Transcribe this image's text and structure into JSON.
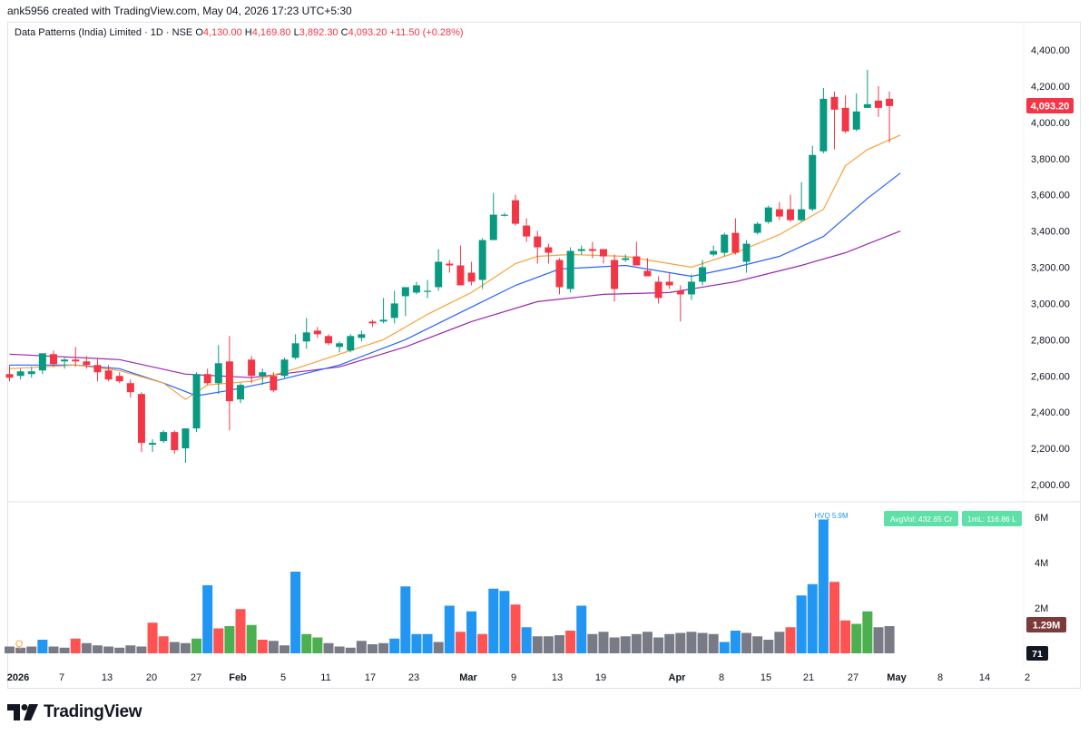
{
  "header": {
    "attribution": "ank5956 created with TradingView.com, May 04, 2026 17:23 UTC+5:30"
  },
  "legend": {
    "symbol": "Data Patterns (India) Limited · 1D · NSE",
    "o_label": "O",
    "o": "4,130.00",
    "h_label": "H",
    "h": "4,169.80",
    "l_label": "L",
    "l": "3,892.30",
    "c_label": "C",
    "c": "4,093.20",
    "change": "+11.50 (+0.28%)"
  },
  "colors": {
    "up": "#089981",
    "down": "#f23645",
    "ema_fast": "#f7a23b",
    "ema_mid": "#2962ff",
    "ema_slow": "#9c27b0",
    "vol_blue": "#2196f3",
    "vol_red": "#ff5252",
    "vol_green": "#4caf50",
    "vol_grey": "#787b86"
  },
  "chart_data": {
    "type": "candlestick",
    "price_axis": {
      "ticks": [
        "2,000.00",
        "2,200.00",
        "2,400.00",
        "2,600.00",
        "2,800.00",
        "3,000.00",
        "3,200.00",
        "3,400.00",
        "3,600.00",
        "3,800.00",
        "4,000.00",
        "4,200.00",
        "4,400.00"
      ],
      "ylim": [
        1920,
        4490
      ]
    },
    "last_price_label": "4,093.20",
    "time_axis": {
      "labels": [
        "2026",
        "7",
        "13",
        "20",
        "27",
        "Feb",
        "5",
        "11",
        "17",
        "23",
        "Mar",
        "9",
        "13",
        "19",
        "Apr",
        "8",
        "15",
        "21",
        "27",
        "May",
        "8",
        "14",
        "2"
      ]
    },
    "candles": [
      {
        "o": 2610,
        "h": 2660,
        "l": 2570,
        "c": 2590
      },
      {
        "o": 2600,
        "h": 2640,
        "l": 2580,
        "c": 2625
      },
      {
        "o": 2610,
        "h": 2650,
        "l": 2590,
        "c": 2625
      },
      {
        "o": 2630,
        "h": 2720,
        "l": 2610,
        "c": 2725
      },
      {
        "o": 2720,
        "h": 2740,
        "l": 2650,
        "c": 2665
      },
      {
        "o": 2680,
        "h": 2700,
        "l": 2640,
        "c": 2690
      },
      {
        "o": 2690,
        "h": 2760,
        "l": 2650,
        "c": 2680
      },
      {
        "o": 2680,
        "h": 2710,
        "l": 2640,
        "c": 2660
      },
      {
        "o": 2660,
        "h": 2700,
        "l": 2570,
        "c": 2620
      },
      {
        "o": 2630,
        "h": 2660,
        "l": 2570,
        "c": 2580
      },
      {
        "o": 2600,
        "h": 2620,
        "l": 2560,
        "c": 2570
      },
      {
        "o": 2560,
        "h": 2580,
        "l": 2480,
        "c": 2510
      },
      {
        "o": 2500,
        "h": 2510,
        "l": 2180,
        "c": 2230
      },
      {
        "o": 2220,
        "h": 2250,
        "l": 2180,
        "c": 2230
      },
      {
        "o": 2240,
        "h": 2300,
        "l": 2230,
        "c": 2290
      },
      {
        "o": 2290,
        "h": 2300,
        "l": 2170,
        "c": 2190
      },
      {
        "o": 2200,
        "h": 2310,
        "l": 2120,
        "c": 2310
      },
      {
        "o": 2310,
        "h": 2620,
        "l": 2290,
        "c": 2610
      },
      {
        "o": 2610,
        "h": 2640,
        "l": 2550,
        "c": 2560
      },
      {
        "o": 2560,
        "h": 2770,
        "l": 2500,
        "c": 2670
      },
      {
        "o": 2680,
        "h": 2820,
        "l": 2300,
        "c": 2460
      },
      {
        "o": 2470,
        "h": 2560,
        "l": 2450,
        "c": 2550
      },
      {
        "o": 2690,
        "h": 2710,
        "l": 2560,
        "c": 2600
      },
      {
        "o": 2600,
        "h": 2640,
        "l": 2550,
        "c": 2620
      },
      {
        "o": 2600,
        "h": 2620,
        "l": 2510,
        "c": 2520
      },
      {
        "o": 2600,
        "h": 2700,
        "l": 2590,
        "c": 2690
      },
      {
        "o": 2700,
        "h": 2830,
        "l": 2690,
        "c": 2780
      },
      {
        "o": 2790,
        "h": 2920,
        "l": 2750,
        "c": 2840
      },
      {
        "o": 2850,
        "h": 2870,
        "l": 2810,
        "c": 2830
      },
      {
        "o": 2820,
        "h": 2830,
        "l": 2770,
        "c": 2780
      },
      {
        "o": 2760,
        "h": 2790,
        "l": 2730,
        "c": 2780
      },
      {
        "o": 2740,
        "h": 2830,
        "l": 2730,
        "c": 2820
      },
      {
        "o": 2810,
        "h": 2850,
        "l": 2790,
        "c": 2830
      },
      {
        "o": 2900,
        "h": 2910,
        "l": 2870,
        "c": 2890
      },
      {
        "o": 2900,
        "h": 3030,
        "l": 2890,
        "c": 2910
      },
      {
        "o": 2920,
        "h": 3070,
        "l": 2890,
        "c": 3000
      },
      {
        "o": 3040,
        "h": 3090,
        "l": 2930,
        "c": 3090
      },
      {
        "o": 3060,
        "h": 3120,
        "l": 3050,
        "c": 3100
      },
      {
        "o": 3070,
        "h": 3130,
        "l": 3030,
        "c": 3070
      },
      {
        "o": 3090,
        "h": 3300,
        "l": 3070,
        "c": 3230
      },
      {
        "o": 3220,
        "h": 3240,
        "l": 3170,
        "c": 3210
      },
      {
        "o": 3210,
        "h": 3320,
        "l": 3100,
        "c": 3100
      },
      {
        "o": 3170,
        "h": 3230,
        "l": 3100,
        "c": 3120
      },
      {
        "o": 3130,
        "h": 3360,
        "l": 3080,
        "c": 3350
      },
      {
        "o": 3350,
        "h": 3610,
        "l": 3350,
        "c": 3490
      },
      {
        "o": 3490,
        "h": 3500,
        "l": 3480,
        "c": 3490
      },
      {
        "o": 3570,
        "h": 3600,
        "l": 3430,
        "c": 3440
      },
      {
        "o": 3430,
        "h": 3470,
        "l": 3340,
        "c": 3370
      },
      {
        "o": 3370,
        "h": 3400,
        "l": 3220,
        "c": 3310
      },
      {
        "o": 3310,
        "h": 3330,
        "l": 3220,
        "c": 3280
      },
      {
        "o": 3240,
        "h": 3250,
        "l": 3050,
        "c": 3090
      },
      {
        "o": 3080,
        "h": 3310,
        "l": 3060,
        "c": 3290
      },
      {
        "o": 3290,
        "h": 3320,
        "l": 3270,
        "c": 3300
      },
      {
        "o": 3300,
        "h": 3340,
        "l": 3250,
        "c": 3290
      },
      {
        "o": 3300,
        "h": 3300,
        "l": 3220,
        "c": 3260
      },
      {
        "o": 3240,
        "h": 3270,
        "l": 3010,
        "c": 3080
      },
      {
        "o": 3240,
        "h": 3270,
        "l": 3230,
        "c": 3250
      },
      {
        "o": 3260,
        "h": 3340,
        "l": 3210,
        "c": 3210
      },
      {
        "o": 3180,
        "h": 3250,
        "l": 3150,
        "c": 3150
      },
      {
        "o": 3120,
        "h": 3150,
        "l": 3000,
        "c": 3030
      },
      {
        "o": 3120,
        "h": 3170,
        "l": 3080,
        "c": 3100
      },
      {
        "o": 3070,
        "h": 3100,
        "l": 2900,
        "c": 3050
      },
      {
        "o": 3050,
        "h": 3160,
        "l": 3020,
        "c": 3120
      },
      {
        "o": 3120,
        "h": 3240,
        "l": 3100,
        "c": 3200
      },
      {
        "o": 3270,
        "h": 3320,
        "l": 3260,
        "c": 3290
      },
      {
        "o": 3280,
        "h": 3390,
        "l": 3260,
        "c": 3380
      },
      {
        "o": 3390,
        "h": 3470,
        "l": 3270,
        "c": 3280
      },
      {
        "o": 3230,
        "h": 3350,
        "l": 3170,
        "c": 3330
      },
      {
        "o": 3390,
        "h": 3450,
        "l": 3380,
        "c": 3440
      },
      {
        "o": 3450,
        "h": 3540,
        "l": 3440,
        "c": 3530
      },
      {
        "o": 3520,
        "h": 3560,
        "l": 3460,
        "c": 3480
      },
      {
        "o": 3520,
        "h": 3600,
        "l": 3450,
        "c": 3460
      },
      {
        "o": 3460,
        "h": 3670,
        "l": 3450,
        "c": 3520
      },
      {
        "o": 3520,
        "h": 3870,
        "l": 3510,
        "c": 3820
      },
      {
        "o": 3840,
        "h": 4190,
        "l": 3830,
        "c": 4130
      },
      {
        "o": 4140,
        "h": 4170,
        "l": 3850,
        "c": 4070
      },
      {
        "o": 4080,
        "h": 4150,
        "l": 3940,
        "c": 3950
      },
      {
        "o": 3960,
        "h": 4160,
        "l": 3950,
        "c": 4060
      },
      {
        "o": 4080,
        "h": 4290,
        "l": 4080,
        "c": 4100
      },
      {
        "o": 4120,
        "h": 4200,
        "l": 4030,
        "c": 4080
      },
      {
        "o": 4130,
        "h": 4170,
        "l": 3890,
        "c": 4090
      }
    ],
    "ema_fast": [
      [
        0,
        2640
      ],
      [
        6,
        2660
      ],
      [
        10,
        2630
      ],
      [
        14,
        2560
      ],
      [
        16,
        2470
      ],
      [
        18,
        2550
      ],
      [
        22,
        2570
      ],
      [
        26,
        2640
      ],
      [
        30,
        2720
      ],
      [
        34,
        2800
      ],
      [
        38,
        2940
      ],
      [
        42,
        3060
      ],
      [
        46,
        3220
      ],
      [
        48,
        3260
      ],
      [
        51,
        3270
      ],
      [
        56,
        3260
      ],
      [
        62,
        3200
      ],
      [
        66,
        3280
      ],
      [
        70,
        3380
      ],
      [
        74,
        3520
      ],
      [
        76,
        3760
      ],
      [
        78,
        3850
      ],
      [
        81,
        3930
      ]
    ],
    "ema_mid": [
      [
        0,
        2660
      ],
      [
        6,
        2660
      ],
      [
        10,
        2640
      ],
      [
        14,
        2560
      ],
      [
        17,
        2490
      ],
      [
        20,
        2520
      ],
      [
        24,
        2570
      ],
      [
        30,
        2660
      ],
      [
        36,
        2800
      ],
      [
        42,
        2980
      ],
      [
        46,
        3100
      ],
      [
        50,
        3190
      ],
      [
        56,
        3210
      ],
      [
        62,
        3150
      ],
      [
        66,
        3200
      ],
      [
        70,
        3260
      ],
      [
        74,
        3370
      ],
      [
        78,
        3580
      ],
      [
        81,
        3720
      ]
    ],
    "ema_slow": [
      [
        0,
        2720
      ],
      [
        10,
        2690
      ],
      [
        16,
        2610
      ],
      [
        22,
        2590
      ],
      [
        30,
        2650
      ],
      [
        36,
        2760
      ],
      [
        42,
        2900
      ],
      [
        48,
        3010
      ],
      [
        54,
        3050
      ],
      [
        60,
        3060
      ],
      [
        66,
        3120
      ],
      [
        72,
        3210
      ],
      [
        76,
        3280
      ],
      [
        81,
        3400
      ]
    ],
    "volume_axis": {
      "ticks": [
        "2M",
        "4M",
        "6M"
      ],
      "ylim": [
        0,
        6.4
      ]
    },
    "volume_labels": {
      "hvq": "HVQ 5.9M",
      "avg_vol": "AvgVol: 432.65 Cr",
      "one_ml": "1mL: 116.86 L",
      "last_vol": "1.29M",
      "count": "71"
    },
    "volume_marker": "Q",
    "volume": [
      {
        "v": 0.3,
        "c": "grey"
      },
      {
        "v": 0.25,
        "c": "grey"
      },
      {
        "v": 0.3,
        "c": "grey"
      },
      {
        "v": 0.6,
        "c": "blue"
      },
      {
        "v": 0.3,
        "c": "grey"
      },
      {
        "v": 0.25,
        "c": "grey"
      },
      {
        "v": 0.65,
        "c": "red"
      },
      {
        "v": 0.45,
        "c": "grey"
      },
      {
        "v": 0.35,
        "c": "grey"
      },
      {
        "v": 0.3,
        "c": "grey"
      },
      {
        "v": 0.25,
        "c": "grey"
      },
      {
        "v": 0.35,
        "c": "grey"
      },
      {
        "v": 0.3,
        "c": "grey"
      },
      {
        "v": 1.35,
        "c": "red"
      },
      {
        "v": 0.75,
        "c": "red"
      },
      {
        "v": 0.5,
        "c": "grey"
      },
      {
        "v": 0.45,
        "c": "grey"
      },
      {
        "v": 0.65,
        "c": "green"
      },
      {
        "v": 3.0,
        "c": "blue"
      },
      {
        "v": 1.1,
        "c": "red"
      },
      {
        "v": 1.2,
        "c": "green"
      },
      {
        "v": 1.95,
        "c": "red"
      },
      {
        "v": 1.25,
        "c": "green"
      },
      {
        "v": 0.6,
        "c": "red"
      },
      {
        "v": 0.55,
        "c": "grey"
      },
      {
        "v": 0.35,
        "c": "grey"
      },
      {
        "v": 3.6,
        "c": "blue"
      },
      {
        "v": 0.85,
        "c": "green"
      },
      {
        "v": 0.7,
        "c": "green"
      },
      {
        "v": 0.45,
        "c": "grey"
      },
      {
        "v": 0.3,
        "c": "grey"
      },
      {
        "v": 0.25,
        "c": "grey"
      },
      {
        "v": 0.55,
        "c": "grey"
      },
      {
        "v": 0.4,
        "c": "grey"
      },
      {
        "v": 0.45,
        "c": "grey"
      },
      {
        "v": 0.65,
        "c": "blue"
      },
      {
        "v": 2.95,
        "c": "blue"
      },
      {
        "v": 0.85,
        "c": "blue"
      },
      {
        "v": 0.85,
        "c": "blue"
      },
      {
        "v": 0.5,
        "c": "grey"
      },
      {
        "v": 2.1,
        "c": "blue"
      },
      {
        "v": 0.95,
        "c": "red"
      },
      {
        "v": 1.85,
        "c": "blue"
      },
      {
        "v": 0.85,
        "c": "red"
      },
      {
        "v": 2.85,
        "c": "blue"
      },
      {
        "v": 2.75,
        "c": "blue"
      },
      {
        "v": 2.15,
        "c": "red"
      },
      {
        "v": 1.15,
        "c": "blue"
      },
      {
        "v": 0.75,
        "c": "grey"
      },
      {
        "v": 0.75,
        "c": "grey"
      },
      {
        "v": 0.8,
        "c": "grey"
      },
      {
        "v": 1.0,
        "c": "red"
      },
      {
        "v": 2.1,
        "c": "blue"
      },
      {
        "v": 0.85,
        "c": "grey"
      },
      {
        "v": 0.95,
        "c": "grey"
      },
      {
        "v": 0.7,
        "c": "grey"
      },
      {
        "v": 0.75,
        "c": "grey"
      },
      {
        "v": 0.85,
        "c": "grey"
      },
      {
        "v": 0.95,
        "c": "grey"
      },
      {
        "v": 0.7,
        "c": "grey"
      },
      {
        "v": 0.85,
        "c": "grey"
      },
      {
        "v": 0.9,
        "c": "grey"
      },
      {
        "v": 0.95,
        "c": "grey"
      },
      {
        "v": 0.9,
        "c": "grey"
      },
      {
        "v": 0.85,
        "c": "grey"
      },
      {
        "v": 0.5,
        "c": "blue"
      },
      {
        "v": 1.0,
        "c": "blue"
      },
      {
        "v": 0.9,
        "c": "grey"
      },
      {
        "v": 0.75,
        "c": "grey"
      },
      {
        "v": 0.6,
        "c": "grey"
      },
      {
        "v": 0.95,
        "c": "grey"
      },
      {
        "v": 1.15,
        "c": "red"
      },
      {
        "v": 2.55,
        "c": "blue"
      },
      {
        "v": 3.05,
        "c": "blue"
      },
      {
        "v": 5.9,
        "c": "blue"
      },
      {
        "v": 3.15,
        "c": "red"
      },
      {
        "v": 1.45,
        "c": "red"
      },
      {
        "v": 1.3,
        "c": "green"
      },
      {
        "v": 1.85,
        "c": "green"
      },
      {
        "v": 1.15,
        "c": "grey"
      },
      {
        "v": 1.2,
        "c": "grey"
      }
    ]
  },
  "footer": {
    "brand": "TradingView"
  }
}
